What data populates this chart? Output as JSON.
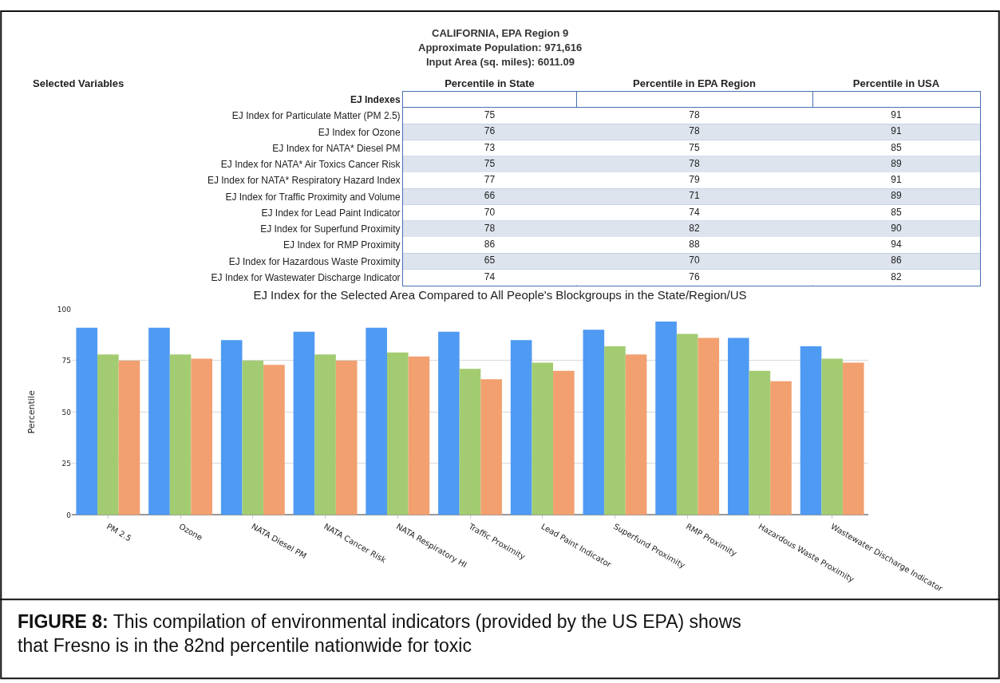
{
  "chart_data": [
    {
      "type": "heatmap",
      "title": "CALIFORNIA, EPA Region 9",
      "subtitle": "Approximate Population: 971,616\nInput Area (sq. miles): 6011.09",
      "ylabel": "Selected Variables",
      "data_labels": true,
      "categories": [
        "Percentile in State",
        "Percentile in EPA Region",
        "Percentile in USA"
      ],
      "y_categories": [
        "EJ Indexes",
        "EJ Index for Particulate Matter (PM 2.5)",
        "EJ Index for Ozone",
        "EJ Index for NATA* Diesel PM",
        "EJ Index for NATA* Air Toxics Cancer Risk",
        "EJ Index for NATA* Respiratory Hazard Index",
        "EJ Index for Traffic Proximity and Volume",
        "EJ Index for Lead Paint Indicator",
        "EJ Index for Superfund Proximity",
        "EJ Index for RMP Proximity",
        "EJ Index for Hazardous Waste Proximity",
        "EJ Index for Wastewater Discharge Indicator"
      ],
      "cells": [
        [
          null,
          null,
          null
        ],
        [
          75,
          78,
          91
        ],
        [
          76,
          78,
          91
        ],
        [
          73,
          75,
          85
        ],
        [
          75,
          78,
          89
        ],
        [
          77,
          79,
          91
        ],
        [
          66,
          71,
          89
        ],
        [
          70,
          74,
          85
        ],
        [
          78,
          82,
          90
        ],
        [
          86,
          88,
          94
        ],
        [
          65,
          70,
          86
        ],
        [
          74,
          76,
          82
        ]
      ]
    },
    {
      "type": "bar",
      "title": "EJ Index for the Selected Area Compared to All People's Blockgroups in the State/Region/US",
      "categories": [
        "PM 2.5",
        "Ozone",
        "NATA Diesel PM",
        "NATA Cancer Risk",
        "NATA Respiratory HI",
        "Traffic Proximity",
        "Lead Paint Indicator",
        "Superfund Proximity",
        "RMP Proximity",
        "Hazardous Waste Proximity",
        "Wastewater Discharge Indicator"
      ],
      "series": [
        {
          "color": "#4f9af2",
          "values": [
            91,
            91,
            85,
            89,
            91,
            89,
            85,
            90,
            94,
            86,
            82
          ]
        },
        {
          "color": "#a3cc72",
          "values": [
            78,
            78,
            75,
            78,
            79,
            71,
            74,
            82,
            88,
            70,
            76
          ]
        },
        {
          "color": "#f2a070",
          "values": [
            75,
            76,
            73,
            75,
            77,
            66,
            70,
            78,
            86,
            65,
            74
          ]
        }
      ],
      "ylabel": "Percentile",
      "ylim": [
        0,
        100
      ],
      "yticks": [
        0,
        25,
        50,
        75,
        100
      ],
      "grid": "y",
      "annotations": [
        "FIGURE 8: This compilation of environmental indicators (provided by the US EPA) shows that Fresno is in the 82nd percentile nationwide for toxic"
      ]
    }
  ]
}
